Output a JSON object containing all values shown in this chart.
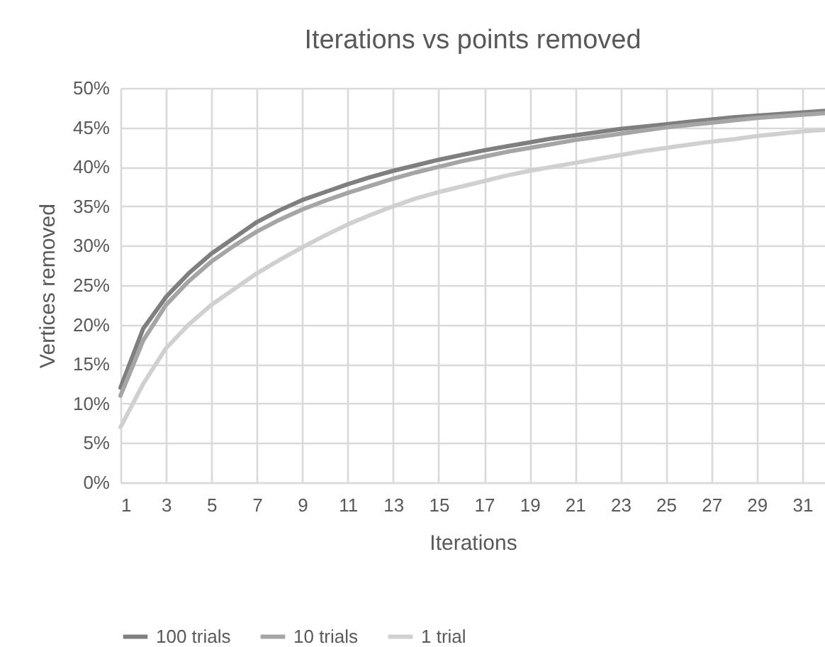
{
  "chart_data": {
    "type": "line",
    "title": "Iterations vs points removed",
    "xlabel": "Iterations",
    "ylabel": "Vertices removed",
    "x": [
      1,
      2,
      3,
      4,
      5,
      6,
      7,
      8,
      9,
      10,
      11,
      12,
      13,
      14,
      15,
      16,
      17,
      18,
      19,
      20,
      21,
      22,
      23,
      24,
      25,
      26,
      27,
      28,
      29,
      30,
      31,
      32
    ],
    "series": [
      {
        "name": "100 trials",
        "color": "#7f7f7f",
        "values": [
          12,
          19.5,
          23.5,
          26.5,
          29,
          31,
          33,
          34.5,
          35.8,
          36.8,
          37.8,
          38.7,
          39.5,
          40.2,
          40.9,
          41.5,
          42.1,
          42.6,
          43.1,
          43.6,
          44,
          44.4,
          44.8,
          45.1,
          45.4,
          45.7,
          46,
          46.3,
          46.5,
          46.7,
          46.9,
          47.1
        ]
      },
      {
        "name": "10 trials",
        "color": "#a5a5a5",
        "values": [
          11,
          18,
          22.5,
          25.5,
          28,
          30,
          31.8,
          33.3,
          34.6,
          35.7,
          36.7,
          37.6,
          38.5,
          39.3,
          40,
          40.7,
          41.3,
          41.9,
          42.4,
          42.9,
          43.4,
          43.8,
          44.2,
          44.6,
          45,
          45.3,
          45.6,
          45.9,
          46.2,
          46.4,
          46.6,
          46.8
        ]
      },
      {
        "name": "1 trial",
        "color": "#d0d0d0",
        "values": [
          7,
          12.5,
          17,
          20,
          22.5,
          24.5,
          26.5,
          28.2,
          29.8,
          31.3,
          32.7,
          33.9,
          35,
          36,
          36.8,
          37.5,
          38.2,
          38.9,
          39.5,
          40,
          40.5,
          41,
          41.5,
          42,
          42.4,
          42.8,
          43.2,
          43.5,
          43.9,
          44.2,
          44.5,
          44.7
        ]
      }
    ],
    "xlim": [
      1,
      32
    ],
    "xticks": [
      1,
      3,
      5,
      7,
      9,
      11,
      13,
      15,
      17,
      19,
      21,
      23,
      25,
      27,
      29,
      31
    ],
    "ylim": [
      0,
      50
    ],
    "yticks": [
      {
        "value": 0,
        "label": "0%"
      },
      {
        "value": 5,
        "label": "5%"
      },
      {
        "value": 10,
        "label": "10%"
      },
      {
        "value": 15,
        "label": "15%"
      },
      {
        "value": 20,
        "label": "20%"
      },
      {
        "value": 25,
        "label": "25%"
      },
      {
        "value": 30,
        "label": "30%"
      },
      {
        "value": 35,
        "label": "35%"
      },
      {
        "value": 40,
        "label": "40%"
      },
      {
        "value": 45,
        "label": "45%"
      },
      {
        "value": 50,
        "label": "50%"
      }
    ],
    "grid": true,
    "legend": "bottom",
    "marker": "none",
    "line_style": "solid"
  }
}
